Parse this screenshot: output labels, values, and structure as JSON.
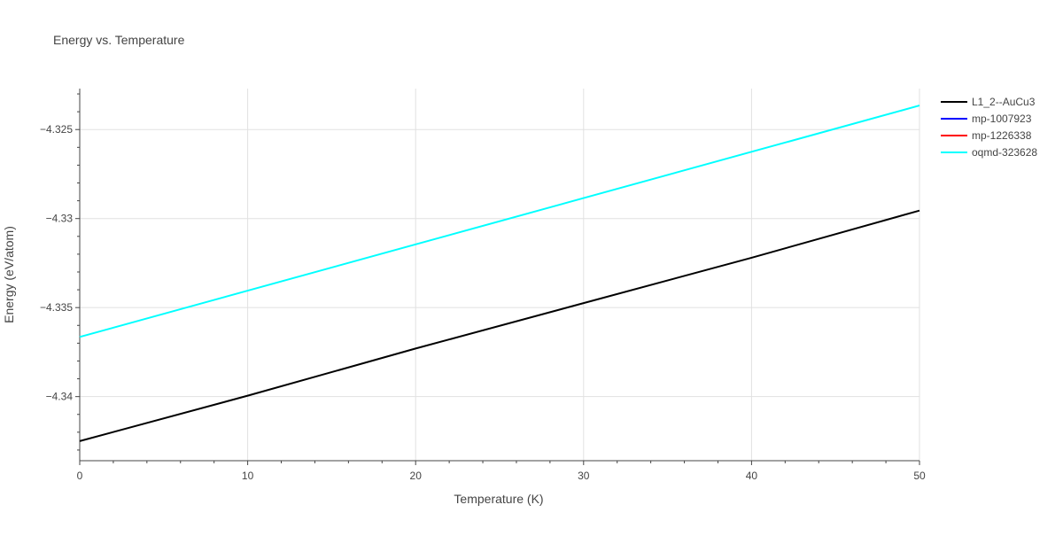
{
  "chart_data": {
    "type": "line",
    "title": "Energy vs. Temperature",
    "xlabel": "Temperature (K)",
    "ylabel": "Energy (eV/atom)",
    "xlim": [
      0,
      50
    ],
    "ylim": [
      -4.3436,
      -4.3227
    ],
    "x_ticks": [
      0,
      10,
      20,
      30,
      40,
      50
    ],
    "x_tick_labels": [
      "0",
      "10",
      "20",
      "30",
      "40",
      "50"
    ],
    "y_ticks": [
      -4.34,
      -4.335,
      -4.33,
      -4.325
    ],
    "y_tick_labels": [
      "−4.34",
      "−4.335",
      "−4.33",
      "−4.325"
    ],
    "grid": true,
    "legend_position": "top-right",
    "series": [
      {
        "name": "L1_2--AuCu3",
        "color": "#000000",
        "x": [
          0,
          10,
          20,
          30,
          40,
          50
        ],
        "y": [
          -4.3425,
          -4.33995,
          -4.3373,
          -4.33475,
          -4.3322,
          -4.32955
        ]
      },
      {
        "name": "mp-1007923",
        "color": "#0000ff",
        "x": [],
        "y": []
      },
      {
        "name": "mp-1226338",
        "color": "#ff0000",
        "x": [],
        "y": []
      },
      {
        "name": "oqmd-323628",
        "color": "#00ffff",
        "x": [
          0,
          10,
          20,
          30,
          40,
          50
        ],
        "y": [
          -4.33665,
          -4.33405,
          -4.33145,
          -4.32885,
          -4.32625,
          -4.32365
        ]
      }
    ]
  }
}
